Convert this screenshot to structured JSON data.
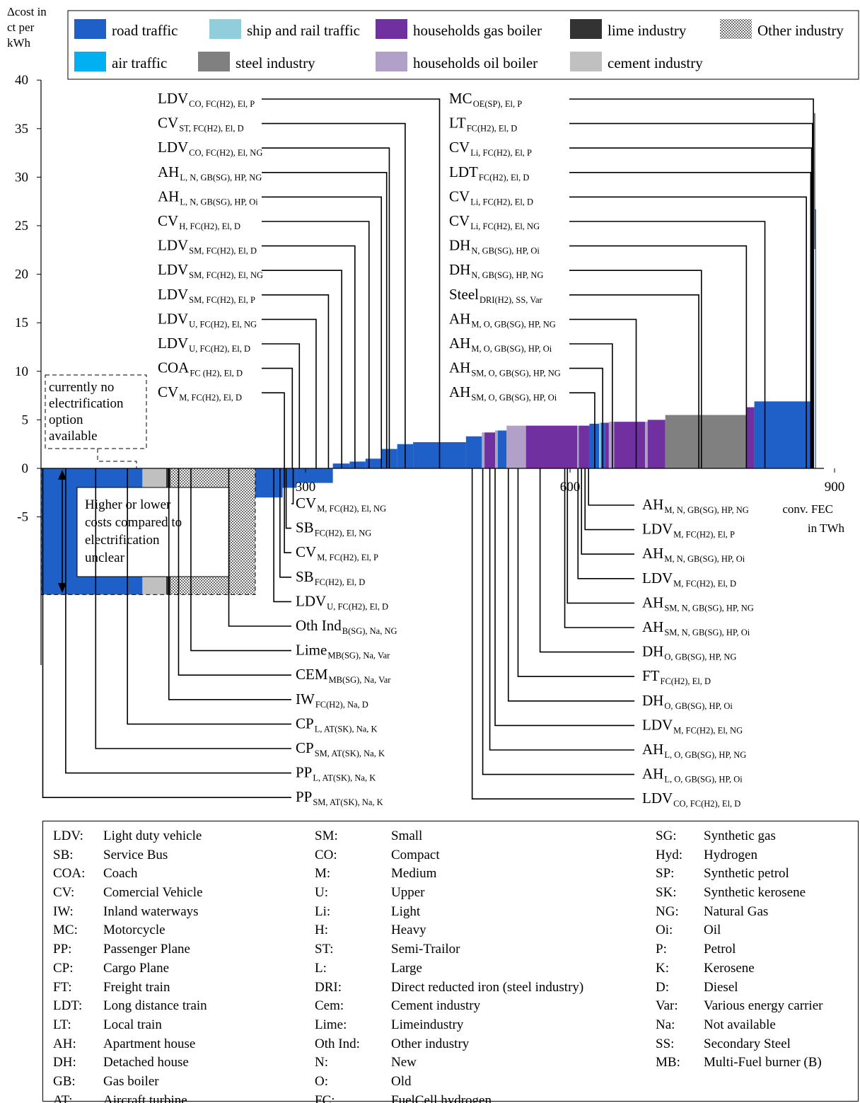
{
  "chart_data": {
    "type": "bar",
    "subtype": "step-cost-curve",
    "ylabel": "Δcost in ct per kWh",
    "xlabel": "conv. FEC in TWh",
    "yticks": [
      -5,
      0,
      5,
      10,
      15,
      20,
      25,
      30,
      35,
      40
    ],
    "xticks": [
      300,
      600,
      900
    ],
    "ylim": [
      -13,
      40
    ],
    "xlim": [
      0,
      900
    ],
    "legend": {
      "placement": "top",
      "entries": [
        {
          "name": "road traffic",
          "color": "#1F5FC8"
        },
        {
          "name": "ship and rail traffic",
          "color": "#92CDDC"
        },
        {
          "name": "households gas boiler",
          "color": "#7030A0"
        },
        {
          "name": "lime industry",
          "color": "#333333"
        },
        {
          "name": "Other industry",
          "color": "#8C8C8C",
          "pattern": "checker"
        },
        {
          "name": "air traffic",
          "color": "#00B0F0"
        },
        {
          "name": "steel industry",
          "color": "#808080"
        },
        {
          "name": "households oil boiler",
          "color": "#B1A0C7"
        },
        {
          "name": "cement industry",
          "color": "#C0C0C0"
        }
      ]
    },
    "bars": [
      {
        "cat": 0,
        "x0": 0,
        "x1": 115,
        "y0": 0,
        "y1": -13
      },
      {
        "cat": 8,
        "x0": 115,
        "x1": 142,
        "y0": 0,
        "y1": -13
      },
      {
        "cat": 3,
        "x0": 142,
        "x1": 147,
        "y0": 0,
        "y1": -13
      },
      {
        "cat": 4,
        "x0": 147,
        "x1": 243,
        "y0": 0,
        "y1": -13
      },
      {
        "cat": 0,
        "x0": 243,
        "x1": 274,
        "y0": 0,
        "y1": -3
      },
      {
        "cat": 0,
        "x0": 274,
        "x1": 290,
        "y0": 0,
        "y1": -2
      },
      {
        "cat": 0,
        "x0": 290,
        "x1": 331,
        "y0": 0,
        "y1": -1.5
      },
      {
        "cat": 0,
        "x0": 331,
        "x1": 350,
        "y0": 0,
        "y1": 0.5
      },
      {
        "cat": 0,
        "x0": 350,
        "x1": 368,
        "y0": 0,
        "y1": 0.7
      },
      {
        "cat": 0,
        "x0": 368,
        "x1": 386,
        "y0": 0,
        "y1": 1
      },
      {
        "cat": 0,
        "x0": 386,
        "x1": 404,
        "y0": 0,
        "y1": 2
      },
      {
        "cat": 0,
        "x0": 404,
        "x1": 422,
        "y0": 0,
        "y1": 2.5
      },
      {
        "cat": 0,
        "x0": 422,
        "x1": 482,
        "y0": 0,
        "y1": 2.7
      },
      {
        "cat": 0,
        "x0": 482,
        "x1": 500,
        "y0": 0,
        "y1": 3.3
      },
      {
        "cat": 7,
        "x0": 500,
        "x1": 503,
        "y0": 0,
        "y1": 3.7
      },
      {
        "cat": 2,
        "x0": 503,
        "x1": 515,
        "y0": 0,
        "y1": 3.7
      },
      {
        "cat": 7,
        "x0": 515,
        "x1": 518,
        "y0": 0,
        "y1": 3.9
      },
      {
        "cat": 0,
        "x0": 518,
        "x1": 528,
        "y0": 0,
        "y1": 3.9
      },
      {
        "cat": 7,
        "x0": 528,
        "x1": 550,
        "y0": 0,
        "y1": 4.4
      },
      {
        "cat": 2,
        "x0": 550,
        "x1": 608,
        "y0": 0,
        "y1": 4.4
      },
      {
        "cat": 7,
        "x0": 608,
        "x1": 610,
        "y0": 0,
        "y1": 4.4
      },
      {
        "cat": 2,
        "x0": 610,
        "x1": 622,
        "y0": 0,
        "y1": 4.4
      },
      {
        "cat": 0,
        "x0": 622,
        "x1": 633,
        "y0": 0,
        "y1": 4.6
      },
      {
        "cat": 1,
        "x0": 633,
        "x1": 635,
        "y0": 0,
        "y1": 4.7
      },
      {
        "cat": 0,
        "x0": 635,
        "x1": 640,
        "y0": 0,
        "y1": 4.7
      },
      {
        "cat": 2,
        "x0": 640,
        "x1": 644,
        "y0": 0,
        "y1": 4.7
      },
      {
        "cat": 7,
        "x0": 644,
        "x1": 650,
        "y0": 0,
        "y1": 4.8
      },
      {
        "cat": 2,
        "x0": 650,
        "x1": 685,
        "y0": 0,
        "y1": 4.8
      },
      {
        "cat": 7,
        "x0": 685,
        "x1": 688,
        "y0": 0,
        "y1": 4.8
      },
      {
        "cat": 2,
        "x0": 688,
        "x1": 708,
        "y0": 0,
        "y1": 5
      },
      {
        "cat": 6,
        "x0": 708,
        "x1": 800,
        "y0": 0,
        "y1": 5.5
      },
      {
        "cat": 2,
        "x0": 800,
        "x1": 809,
        "y0": 0,
        "y1": 6.3
      },
      {
        "cat": 0,
        "x0": 809,
        "x1": 873,
        "y0": 0,
        "y1": 6.9
      },
      {
        "cat": 0,
        "x0": 873,
        "x1": 875,
        "y0": 0,
        "y1": 11.8
      },
      {
        "cat": 1,
        "x0": 875,
        "x1": 877,
        "y0": 0,
        "y1": 22.6
      },
      {
        "cat": 3,
        "x0": 877,
        "x1": 878,
        "y0": 22.6,
        "y1": 36.6
      },
      {
        "cat": 0,
        "x0": 878,
        "x1": 879,
        "y0": 0,
        "y1": 26.7
      }
    ],
    "annotations": [
      {
        "main": "LDV",
        "sub": "CO, FC(H2), El, P",
        "side": "left",
        "row": 0,
        "tx": 452
      },
      {
        "main": "CV",
        "sub": "ST, FC(H2), El, D",
        "side": "left",
        "row": 1,
        "tx": 413
      },
      {
        "main": "LDV",
        "sub": "CO, FC(H2), El, NG",
        "side": "left",
        "row": 2,
        "tx": 395
      },
      {
        "main": "AH",
        "sub": "L, N, GB(SG), HP, NG",
        "side": "left",
        "row": 3,
        "tx": 392
      },
      {
        "main": "AH",
        "sub": "L, N, GB(SG), HP, Oi",
        "side": "left",
        "row": 4,
        "tx": 386
      },
      {
        "main": "CV",
        "sub": "H, FC(H2), El, D",
        "side": "left",
        "row": 5,
        "tx": 372
      },
      {
        "main": "LDV",
        "sub": "SM, FC(H2), El, D",
        "side": "left",
        "row": 6,
        "tx": 356
      },
      {
        "main": "LDV",
        "sub": "SM, FC(H2), El, NG",
        "side": "left",
        "row": 7,
        "tx": 341
      },
      {
        "main": "LDV",
        "sub": "SM, FC(H2), El, P",
        "side": "left",
        "row": 8,
        "tx": 326
      },
      {
        "main": "LDV",
        "sub": "U, FC(H2), El, NG",
        "side": "left",
        "row": 9,
        "tx": 312
      },
      {
        "main": "LDV",
        "sub": "U, FC(H2), El, D",
        "side": "left",
        "row": 10,
        "tx": 293
      },
      {
        "main": "COA",
        "sub": "FC (H2), El, D",
        "side": "left",
        "row": 11,
        "tx": 285
      },
      {
        "main": "CV",
        "sub": "M, FC(H2), El, D",
        "side": "left",
        "row": 12,
        "tx": 276
      },
      {
        "main": "MC",
        "sub": "OE(SP), El, P",
        "side": "right",
        "row": 0,
        "tx": 876
      },
      {
        "main": "LT",
        "sub": "FC(H2), El, D",
        "side": "right",
        "row": 1,
        "tx": 875
      },
      {
        "main": "CV",
        "sub": "Li, FC(H2), El, P",
        "side": "right",
        "row": 2,
        "tx": 874
      },
      {
        "main": "LDT",
        "sub": "FC(H2), El, D",
        "side": "right",
        "row": 3,
        "tx": 873
      },
      {
        "main": "CV",
        "sub": "Li, FC(H2), El, D",
        "side": "right",
        "row": 4,
        "tx": 868
      },
      {
        "main": "CV",
        "sub": "Li, FC(H2), El, NG",
        "side": "right",
        "row": 5,
        "tx": 821
      },
      {
        "main": "DH",
        "sub": "N, GB(SG), HP, Oi",
        "side": "right",
        "row": 6,
        "tx": 800
      },
      {
        "main": "DH",
        "sub": "N, GB(SG), HP, NG",
        "side": "right",
        "row": 7,
        "tx": 749
      },
      {
        "main": "Steel",
        "sub": "DRI(H2), SS, Var",
        "side": "right",
        "row": 8,
        "tx": 746
      },
      {
        "main": "AH",
        "sub": "M, O, GB(SG), HP, NG",
        "side": "right",
        "row": 9,
        "tx": 675
      },
      {
        "main": "AH",
        "sub": "M, O, GB(SG), HP, Oi",
        "side": "right",
        "row": 10,
        "tx": 648
      },
      {
        "main": "AH",
        "sub": "SM, O, GB(SG), HP, NG",
        "side": "right",
        "row": 11,
        "tx": 637
      },
      {
        "main": "AH",
        "sub": "SM, O, GB(SG), HP, Oi",
        "side": "right",
        "row": 12,
        "tx": 628
      },
      {
        "main": "CV",
        "sub": "M, FC(H2), El, NG",
        "side": "bleft",
        "row": 0,
        "tx": 286
      },
      {
        "main": "SB",
        "sub": "FC(H2), El, NG",
        "side": "bleft",
        "row": 1,
        "tx": 278
      },
      {
        "main": "CV",
        "sub": "M, FC(H2), El, P",
        "side": "bleft",
        "row": 2,
        "tx": 276
      },
      {
        "main": "SB",
        "sub": "FC(H2), El, D",
        "side": "bleft",
        "row": 3,
        "tx": 271
      },
      {
        "main": "LDV",
        "sub": "U, FC(H2), El, D",
        "side": "bleft",
        "row": 4,
        "tx": 264
      },
      {
        "main": "Oth Ind",
        "sub": "B(SG), Na, NG",
        "side": "bleft",
        "row": 5,
        "tx": 213
      },
      {
        "main": "Lime",
        "sub": "MB(SG), Na, Var",
        "side": "bleft",
        "row": 6,
        "tx": 170
      },
      {
        "main": "CEM",
        "sub": "MB(SG), Na, Var",
        "side": "bleft",
        "row": 7,
        "tx": 156
      },
      {
        "main": "IW",
        "sub": "FC(H2), Na, D",
        "side": "bleft",
        "row": 8,
        "tx": 145
      },
      {
        "main": "CP",
        "sub": "L, AT(SK), Na, K",
        "side": "bleft",
        "row": 9,
        "tx": 98
      },
      {
        "main": "CP",
        "sub": "SM, AT(SK), Na, K",
        "side": "bleft",
        "row": 10,
        "tx": 62
      },
      {
        "main": "PP",
        "sub": "L, AT(SK), Na, K",
        "side": "bleft",
        "row": 11,
        "tx": 28
      },
      {
        "main": "PP",
        "sub": "SM, AT(SK), Na, K",
        "side": "bleft",
        "row": 12,
        "tx": 2
      },
      {
        "main": "AH",
        "sub": "M, N, GB(SG), HP, NG",
        "side": "bright",
        "row": 0,
        "tx": 621
      },
      {
        "main": "LDV",
        "sub": "M, FC(H2), El, P",
        "side": "bright",
        "row": 1,
        "tx": 617
      },
      {
        "main": "AH",
        "sub": "M, N, GB(SG), HP, Oi",
        "side": "bright",
        "row": 2,
        "tx": 613
      },
      {
        "main": "LDV",
        "sub": "M, FC(H2), El, D",
        "side": "bright",
        "row": 3,
        "tx": 609
      },
      {
        "main": "AH",
        "sub": "SM, N, GB(SG), HP, NG",
        "side": "bright",
        "row": 4,
        "tx": 597
      },
      {
        "main": "AH",
        "sub": "SM, N, GB(SG), HP, Oi",
        "side": "bright",
        "row": 5,
        "tx": 594
      },
      {
        "main": "DH",
        "sub": "O, GB(SG), HP, NG",
        "side": "bright",
        "row": 6,
        "tx": 566
      },
      {
        "main": "FT",
        "sub": "FC(H2), El, D",
        "side": "bright",
        "row": 7,
        "tx": 541
      },
      {
        "main": "DH",
        "sub": "O, GB(SG), HP, Oi",
        "side": "bright",
        "row": 8,
        "tx": 530
      },
      {
        "main": "LDV",
        "sub": "M, FC(H2), El, NG",
        "side": "bright",
        "row": 9,
        "tx": 515
      },
      {
        "main": "AH",
        "sub": "L, O, GB(SG), HP, NG",
        "side": "bright",
        "row": 10,
        "tx": 509
      },
      {
        "main": "AH",
        "sub": "L, O, GB(SG), HP, Oi",
        "side": "bright",
        "row": 11,
        "tx": 501
      },
      {
        "main": "LDV",
        "sub": "CO, FC(H2), El, D",
        "side": "bright",
        "row": 12,
        "tx": 489
      }
    ],
    "notes": [
      {
        "id": "no_option",
        "lines": [
          "currently no",
          "electrification",
          "option",
          "available"
        ]
      },
      {
        "id": "unclear",
        "lines": [
          "Higher or lower",
          "costs compared to",
          "electrification",
          "unclear"
        ]
      }
    ]
  },
  "glossary": [
    [
      [
        "LDV:",
        "Light duty vehicle"
      ],
      [
        "SB:",
        "Service Bus"
      ],
      [
        "COA:",
        "Coach"
      ],
      [
        "CV:",
        "Comercial Vehicle"
      ],
      [
        "IW:",
        "Inland waterways"
      ],
      [
        "MC:",
        "Motorcycle"
      ],
      [
        "PP:",
        "Passenger Plane"
      ],
      [
        "CP:",
        "Cargo Plane"
      ],
      [
        "FT:",
        "Freight train"
      ],
      [
        "LDT:",
        "Long distance train"
      ],
      [
        "LT:",
        "Local train"
      ],
      [
        "AH:",
        "Apartment house"
      ],
      [
        "DH:",
        "Detached house"
      ],
      [
        "GB:",
        "Gas boiler"
      ],
      [
        "AT:",
        "Aircraft turbine"
      ]
    ],
    [
      [
        "SM:",
        "Small"
      ],
      [
        "CO:",
        "Compact"
      ],
      [
        "M:",
        "Medium"
      ],
      [
        "U:",
        "Upper"
      ],
      [
        "Li:",
        "Light"
      ],
      [
        "H:",
        "Heavy"
      ],
      [
        "ST:",
        "Semi-Trailor"
      ],
      [
        "L:",
        "Large"
      ],
      [
        "DRI:",
        "Direct reducted iron (steel industry)"
      ],
      [
        "Cem:",
        "Cement industry"
      ],
      [
        "Lime:",
        "Limeindustry"
      ],
      [
        "Oth Ind:",
        "Other industry"
      ],
      [
        "N:",
        "New"
      ],
      [
        "O:",
        "Old"
      ],
      [
        "FC:",
        "FuelCell hydrogen"
      ]
    ],
    [
      [
        "SG:",
        "Synthetic gas"
      ],
      [
        "Hyd:",
        "Hydrogen"
      ],
      [
        "SP:",
        "Synthetic petrol"
      ],
      [
        "SK:",
        "Synthetic kerosene"
      ],
      [
        "NG:",
        "Natural Gas"
      ],
      [
        "Oi:",
        "Oil"
      ],
      [
        "P:",
        "Petrol"
      ],
      [
        "K:",
        "Kerosene"
      ],
      [
        "D:",
        "Diesel"
      ],
      [
        "Var:",
        "Various energy carrier"
      ],
      [
        "Na:",
        "Not available"
      ],
      [
        "SS:",
        "Secondary Steel"
      ],
      [
        "MB:",
        "Multi-Fuel burner (B)"
      ]
    ]
  ]
}
